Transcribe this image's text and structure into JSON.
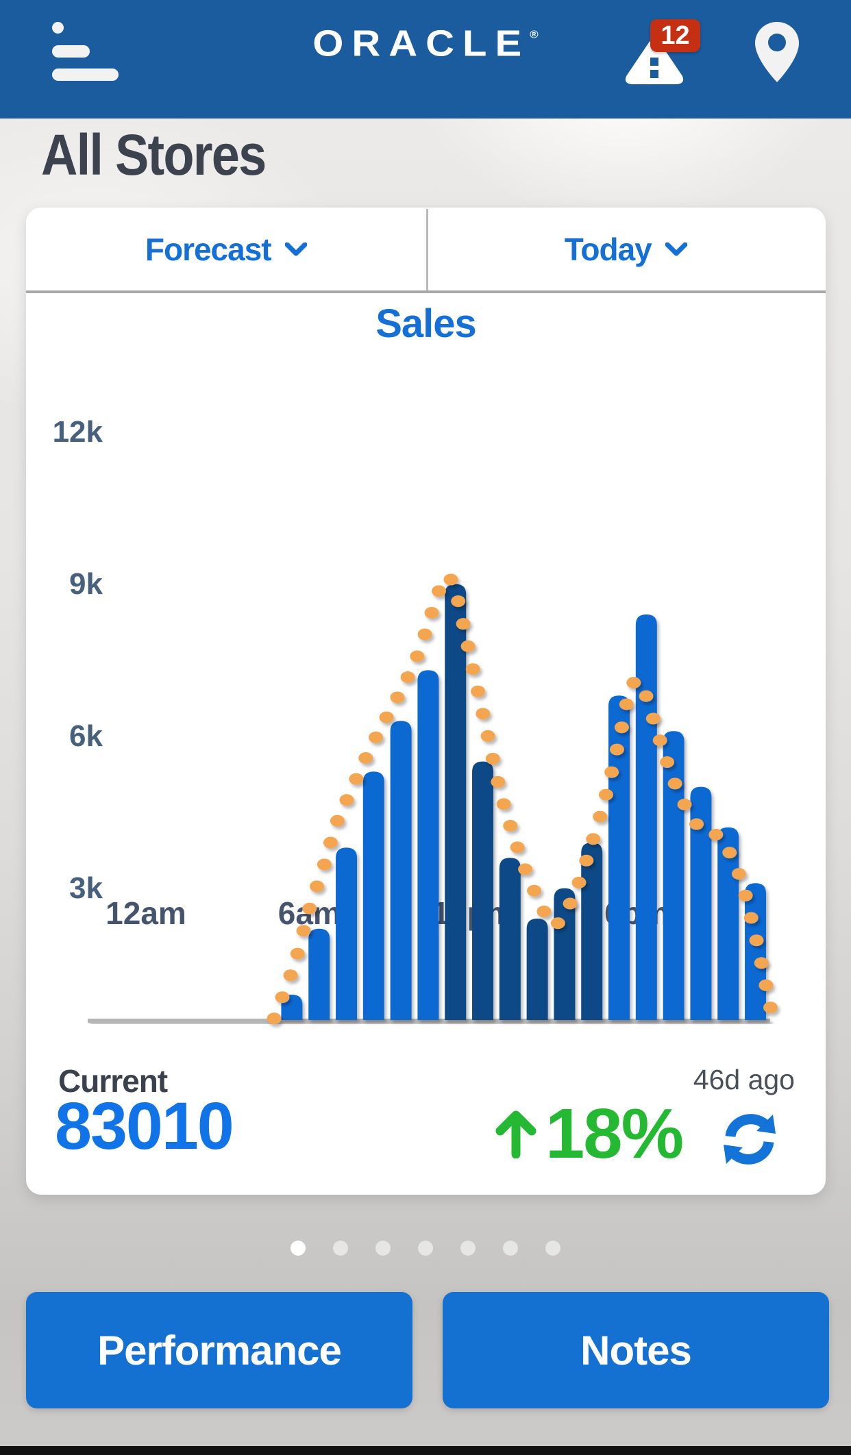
{
  "header": {
    "logo": "ORACLE",
    "registered": "®",
    "alert_badge": "12"
  },
  "page": {
    "title": "All Stores"
  },
  "filters": {
    "metric": "Forecast",
    "period": "Today"
  },
  "chart_data": {
    "type": "bar",
    "title": "Sales",
    "ylabel": "",
    "xlabel": "",
    "ylim": [
      0,
      12800
    ],
    "grid": false,
    "legend": "none",
    "y_ticks": [
      {
        "label": "12k",
        "value": 12000
      },
      {
        "label": "9k",
        "value": 9000
      },
      {
        "label": "6k",
        "value": 6000
      },
      {
        "label": "3k",
        "value": 3000
      }
    ],
    "x_ticks": [
      {
        "label": "12am",
        "hour": 0
      },
      {
        "label": "6am",
        "hour": 6
      },
      {
        "label": "12pm",
        "hour": 12
      },
      {
        "label": "6pm",
        "hour": 18
      }
    ],
    "bars": [
      {
        "hour": 5,
        "label": "5am",
        "value": 500,
        "emphasis": false
      },
      {
        "hour": 6,
        "label": "6am",
        "value": 1800,
        "emphasis": false
      },
      {
        "hour": 7,
        "label": "7am",
        "value": 3400,
        "emphasis": false
      },
      {
        "hour": 8,
        "label": "8am",
        "value": 4900,
        "emphasis": false
      },
      {
        "hour": 9,
        "label": "9am",
        "value": 5900,
        "emphasis": false
      },
      {
        "hour": 10,
        "label": "10am",
        "value": 6900,
        "emphasis": false
      },
      {
        "hour": 11,
        "label": "11am",
        "value": 8600,
        "emphasis": true
      },
      {
        "hour": 12,
        "label": "12pm",
        "value": 5100,
        "emphasis": true
      },
      {
        "hour": 13,
        "label": "1pm",
        "value": 3200,
        "emphasis": true
      },
      {
        "hour": 14,
        "label": "2pm",
        "value": 2000,
        "emphasis": true
      },
      {
        "hour": 15,
        "label": "3pm",
        "value": 2600,
        "emphasis": true
      },
      {
        "hour": 16,
        "label": "4pm",
        "value": 3500,
        "emphasis": true
      },
      {
        "hour": 17,
        "label": "5pm",
        "value": 6400,
        "emphasis": false
      },
      {
        "hour": 18,
        "label": "6pm",
        "value": 8000,
        "emphasis": false
      },
      {
        "hour": 19,
        "label": "7pm",
        "value": 5700,
        "emphasis": false
      },
      {
        "hour": 20,
        "label": "8pm",
        "value": 4600,
        "emphasis": false
      },
      {
        "hour": 21,
        "label": "9pm",
        "value": 3800,
        "emphasis": false
      },
      {
        "hour": 22,
        "label": "10pm",
        "value": 2700,
        "emphasis": false
      }
    ],
    "forecast_points": [
      [
        4.7,
        30
      ],
      [
        5.0,
        450
      ],
      [
        5.5,
        1200
      ],
      [
        6.0,
        2200
      ],
      [
        6.5,
        3000
      ],
      [
        7.0,
        3900
      ],
      [
        7.5,
        4500
      ],
      [
        8.0,
        5100
      ],
      [
        8.5,
        5650
      ],
      [
        9.0,
        6150
      ],
      [
        9.5,
        6650
      ],
      [
        10.0,
        7250
      ],
      [
        10.4,
        7900
      ],
      [
        10.7,
        8400
      ],
      [
        11.0,
        8750
      ],
      [
        11.3,
        8550
      ],
      [
        11.6,
        7900
      ],
      [
        12.0,
        6900
      ],
      [
        12.5,
        5700
      ],
      [
        13.0,
        4500
      ],
      [
        13.5,
        3600
      ],
      [
        14.0,
        2850
      ],
      [
        14.5,
        2250
      ],
      [
        14.9,
        1870
      ],
      [
        15.3,
        2050
      ],
      [
        15.8,
        2600
      ],
      [
        16.3,
        3400
      ],
      [
        16.8,
        4300
      ],
      [
        17.3,
        5400
      ],
      [
        17.7,
        6400
      ],
      [
        18.0,
        6700
      ],
      [
        18.3,
        6450
      ],
      [
        18.8,
        5600
      ],
      [
        19.3,
        4800
      ],
      [
        19.8,
        4200
      ],
      [
        20.3,
        3800
      ],
      [
        20.8,
        3700
      ],
      [
        21.3,
        3400
      ],
      [
        21.8,
        2800
      ],
      [
        22.2,
        2000
      ],
      [
        22.5,
        1300
      ],
      [
        22.75,
        650
      ],
      [
        22.95,
        120
      ]
    ],
    "series_colors": {
      "actual": "#1169d2",
      "actual_emphasis": "#0f4886",
      "forecast": "#f3a54f"
    }
  },
  "stats": {
    "current_label": "Current",
    "current_value": "83010",
    "age": "46d ago",
    "delta": "18%",
    "delta_direction": "up"
  },
  "carousel": {
    "count": 7,
    "active_index": 0
  },
  "actions": {
    "performance": "Performance",
    "notes": "Notes"
  },
  "colors": {
    "header_bg": "#1b5c9e",
    "accent_blue": "#1470d6",
    "stat_blue": "#1173e8",
    "green": "#25b832",
    "badge_red": "#c43011",
    "title_gray": "#3d434e",
    "axis_slate": "#47617d",
    "button_blue": "#1471d2"
  }
}
